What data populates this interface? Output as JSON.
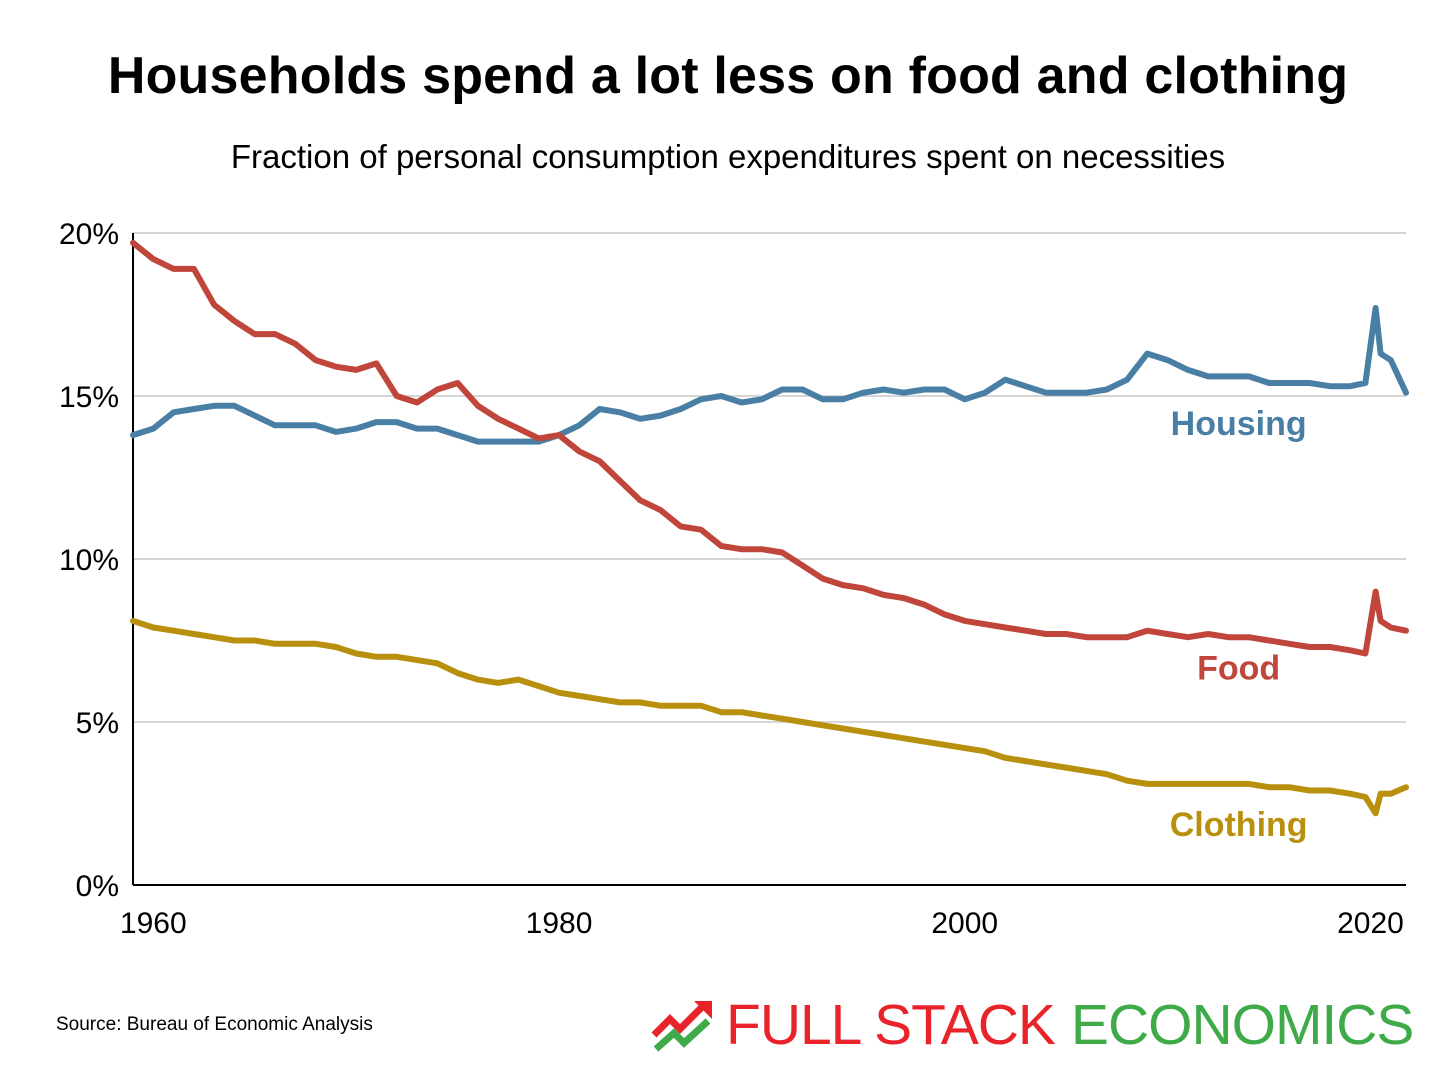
{
  "title": "Households spend a lot less on food and clothing",
  "subtitle": "Fraction of personal consumption expenditures spent on necessities",
  "source": "Source: Bureau of Economic Analysis",
  "brand": {
    "part1": "FULL STACK",
    "part2": "ECONOMICS",
    "part1_color": "#e8232a",
    "part2_color": "#3eaa48",
    "icon": "trend-arrow-icon"
  },
  "chart_data": {
    "type": "line",
    "title": "Households spend a lot less on food and clothing",
    "subtitle": "Fraction of personal consumption expenditures spent on necessities",
    "xlim": [
      1959,
      2021.75
    ],
    "ylim": [
      0,
      20
    ],
    "yticks": [
      0,
      5,
      10,
      15,
      20
    ],
    "ytick_labels": [
      "0%",
      "5%",
      "10%",
      "15%",
      "20%"
    ],
    "xticks": [
      1960,
      1980,
      2000,
      2020
    ],
    "xtick_labels": [
      "1960",
      "1980",
      "2000",
      "2020"
    ],
    "grid": "horizontal",
    "series": [
      {
        "name": "Housing",
        "color": "#4a7fa5",
        "x": [
          1959,
          1960,
          1961,
          1962,
          1963,
          1964,
          1965,
          1966,
          1967,
          1968,
          1969,
          1970,
          1971,
          1972,
          1973,
          1974,
          1975,
          1976,
          1977,
          1978,
          1979,
          1980,
          1981,
          1982,
          1983,
          1984,
          1985,
          1986,
          1987,
          1988,
          1989,
          1990,
          1991,
          1992,
          1993,
          1994,
          1995,
          1996,
          1997,
          1998,
          1999,
          2000,
          2001,
          2002,
          2003,
          2004,
          2005,
          2006,
          2007,
          2008,
          2009,
          2010,
          2011,
          2012,
          2013,
          2014,
          2015,
          2016,
          2017,
          2018,
          2019,
          2019.75,
          2020.25,
          2020.5,
          2021,
          2021.75
        ],
        "values": [
          13.8,
          14.0,
          14.5,
          14.6,
          14.7,
          14.7,
          14.4,
          14.1,
          14.1,
          14.1,
          13.9,
          14.0,
          14.2,
          14.2,
          14.0,
          14.0,
          13.8,
          13.6,
          13.6,
          13.6,
          13.6,
          13.8,
          14.1,
          14.6,
          14.5,
          14.3,
          14.4,
          14.6,
          14.9,
          15.0,
          14.8,
          14.9,
          15.2,
          15.2,
          14.9,
          14.9,
          15.1,
          15.2,
          15.1,
          15.2,
          15.2,
          14.9,
          15.1,
          15.5,
          15.3,
          15.1,
          15.1,
          15.1,
          15.2,
          15.5,
          16.3,
          16.1,
          15.8,
          15.6,
          15.6,
          15.6,
          15.4,
          15.4,
          15.4,
          15.3,
          15.3,
          15.4,
          17.7,
          16.3,
          16.1,
          15.1
        ]
      },
      {
        "name": "Food",
        "color": "#c0453b",
        "x": [
          1959,
          1960,
          1961,
          1962,
          1963,
          1964,
          1965,
          1966,
          1967,
          1968,
          1969,
          1970,
          1971,
          1972,
          1973,
          1974,
          1975,
          1976,
          1977,
          1978,
          1979,
          1980,
          1981,
          1982,
          1983,
          1984,
          1985,
          1986,
          1987,
          1988,
          1989,
          1990,
          1991,
          1992,
          1993,
          1994,
          1995,
          1996,
          1997,
          1998,
          1999,
          2000,
          2001,
          2002,
          2003,
          2004,
          2005,
          2006,
          2007,
          2008,
          2009,
          2010,
          2011,
          2012,
          2013,
          2014,
          2015,
          2016,
          2017,
          2018,
          2019,
          2019.75,
          2020.25,
          2020.5,
          2021,
          2021.75
        ],
        "values": [
          19.7,
          19.2,
          18.9,
          18.9,
          17.8,
          17.3,
          16.9,
          16.9,
          16.6,
          16.1,
          15.9,
          15.8,
          16.0,
          15.0,
          14.8,
          15.2,
          15.4,
          14.7,
          14.3,
          14.0,
          13.7,
          13.8,
          13.3,
          13.0,
          12.4,
          11.8,
          11.5,
          11.0,
          10.9,
          10.4,
          10.3,
          10.3,
          10.2,
          9.8,
          9.4,
          9.2,
          9.1,
          8.9,
          8.8,
          8.6,
          8.3,
          8.1,
          8.0,
          7.9,
          7.8,
          7.7,
          7.7,
          7.6,
          7.6,
          7.6,
          7.8,
          7.7,
          7.6,
          7.7,
          7.6,
          7.6,
          7.5,
          7.4,
          7.3,
          7.3,
          7.2,
          7.1,
          9.0,
          8.1,
          7.9,
          7.8
        ]
      },
      {
        "name": "Clothing",
        "color": "#b8900e",
        "x": [
          1959,
          1960,
          1961,
          1962,
          1963,
          1964,
          1965,
          1966,
          1967,
          1968,
          1969,
          1970,
          1971,
          1972,
          1973,
          1974,
          1975,
          1976,
          1977,
          1978,
          1979,
          1980,
          1981,
          1982,
          1983,
          1984,
          1985,
          1986,
          1987,
          1988,
          1989,
          1990,
          1991,
          1992,
          1993,
          1994,
          1995,
          1996,
          1997,
          1998,
          1999,
          2000,
          2001,
          2002,
          2003,
          2004,
          2005,
          2006,
          2007,
          2008,
          2009,
          2010,
          2011,
          2012,
          2013,
          2014,
          2015,
          2016,
          2017,
          2018,
          2019,
          2019.75,
          2020.25,
          2020.5,
          2021,
          2021.75
        ],
        "values": [
          8.1,
          7.9,
          7.8,
          7.7,
          7.6,
          7.5,
          7.5,
          7.4,
          7.4,
          7.4,
          7.3,
          7.1,
          7.0,
          7.0,
          6.9,
          6.8,
          6.5,
          6.3,
          6.2,
          6.3,
          6.1,
          5.9,
          5.8,
          5.7,
          5.6,
          5.6,
          5.5,
          5.5,
          5.5,
          5.3,
          5.3,
          5.2,
          5.1,
          5.0,
          4.9,
          4.8,
          4.7,
          4.6,
          4.5,
          4.4,
          4.3,
          4.2,
          4.1,
          3.9,
          3.8,
          3.7,
          3.6,
          3.5,
          3.4,
          3.2,
          3.1,
          3.1,
          3.1,
          3.1,
          3.1,
          3.1,
          3.0,
          3.0,
          2.9,
          2.9,
          2.8,
          2.7,
          2.2,
          2.8,
          2.8,
          3.0
        ]
      }
    ]
  }
}
